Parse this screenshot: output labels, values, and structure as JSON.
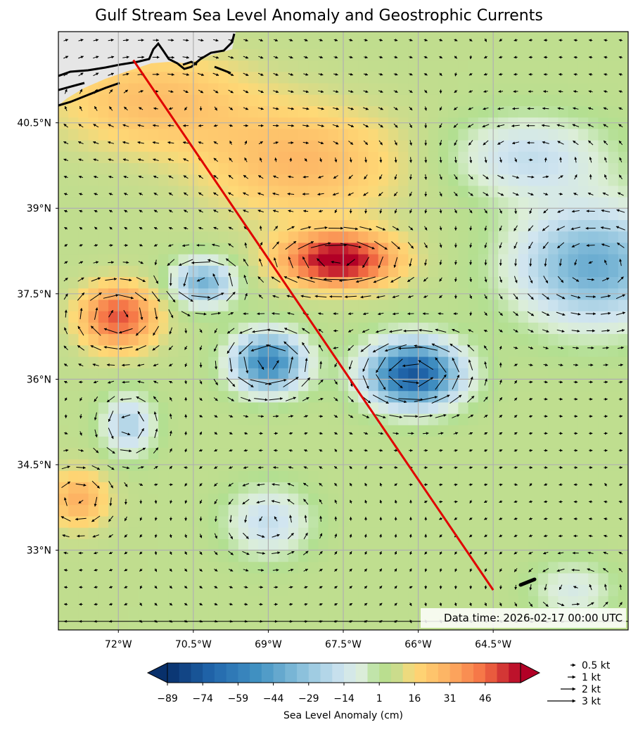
{
  "chart_data": {
    "type": "heatmap",
    "title": "Gulf Stream Sea Level Anomaly and Geostrophic Currents",
    "lon_range": [
      -73.2,
      -61.8
    ],
    "lat_range": [
      31.6,
      42.1
    ],
    "x_ticks": [
      -72,
      -70.5,
      -69,
      -67.5,
      -66,
      -64.5
    ],
    "x_tick_labels": [
      "72°W",
      "70.5°W",
      "69°W",
      "67.5°W",
      "66°W",
      "64.5°W"
    ],
    "y_ticks": [
      40.5,
      39,
      37.5,
      36,
      34.5,
      33
    ],
    "y_tick_labels": [
      "40.5°N",
      "39°N",
      "37.5°N",
      "36°N",
      "34.5°N",
      "33°N"
    ],
    "grid": true,
    "annotation": "Data time: 2026-02-17 00:00 UTC",
    "colorbar": {
      "label": "Sea Level Anomaly (cm)",
      "ticks": [
        -89,
        -74,
        -59,
        -44,
        -29,
        -14,
        1,
        16,
        31,
        46
      ],
      "tick_labels": [
        "−89",
        "−74",
        "−59",
        "−44",
        "−29",
        "−14",
        "1",
        "16",
        "31",
        "46"
      ],
      "range": [
        -89,
        61
      ]
    },
    "quiver_key": [
      "0.5 kt",
      "1 kt",
      "2 kt",
      "3 kt"
    ],
    "track": [
      [
        -71.7,
        41.6
      ],
      [
        -64.5,
        32.3
      ]
    ],
    "eddies": [
      {
        "kind": "warm",
        "lon": -67.6,
        "lat": 38.1,
        "amp": 62,
        "rx": 1.1,
        "ry": 0.45
      },
      {
        "kind": "warm",
        "lon": -72.0,
        "lat": 37.1,
        "amp": 45,
        "rx": 0.75,
        "ry": 0.55
      },
      {
        "kind": "warm",
        "lon": -68.3,
        "lat": 39.8,
        "amp": 22,
        "rx": 2.0,
        "ry": 1.0
      },
      {
        "kind": "warm",
        "lon": -71.3,
        "lat": 40.9,
        "amp": 20,
        "rx": 2.0,
        "ry": 0.9
      },
      {
        "kind": "warm",
        "lon": -72.8,
        "lat": 33.9,
        "amp": 25,
        "rx": 0.6,
        "ry": 0.5
      },
      {
        "kind": "cold",
        "lon": -66.1,
        "lat": 36.1,
        "amp": -80,
        "rx": 0.9,
        "ry": 0.55
      },
      {
        "kind": "cold",
        "lon": -69.0,
        "lat": 36.3,
        "amp": -62,
        "rx": 0.7,
        "ry": 0.5
      },
      {
        "kind": "cold",
        "lon": -70.3,
        "lat": 37.7,
        "amp": -42,
        "rx": 0.6,
        "ry": 0.4
      },
      {
        "kind": "cold",
        "lon": -62.5,
        "lat": 38.0,
        "amp": -45,
        "rx": 1.5,
        "ry": 1.0
      },
      {
        "kind": "cold",
        "lon": -63.8,
        "lat": 39.9,
        "amp": -22,
        "rx": 1.5,
        "ry": 0.7
      },
      {
        "kind": "cold",
        "lon": -71.8,
        "lat": 35.2,
        "amp": -28,
        "rx": 0.5,
        "ry": 0.5
      },
      {
        "kind": "cold",
        "lon": -69.0,
        "lat": 33.5,
        "amp": -22,
        "rx": 0.8,
        "ry": 0.6
      },
      {
        "kind": "cold",
        "lon": -62.9,
        "lat": 32.3,
        "amp": -15,
        "rx": 0.8,
        "ry": 0.5
      }
    ]
  }
}
